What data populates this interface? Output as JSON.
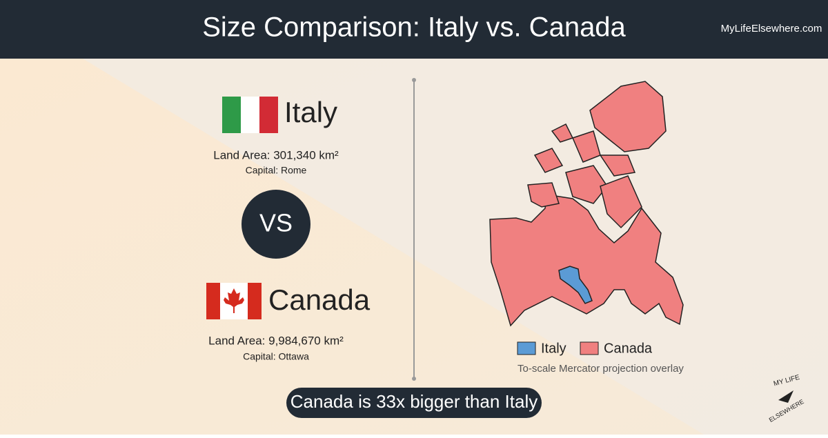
{
  "header": {
    "title": "Size Comparison: Italy vs. Canada",
    "site": "MyLifeElsewhere.com"
  },
  "countries": [
    {
      "name": "Italy",
      "land_area": "Land Area: 301,340 km²",
      "capital": "Capital: Rome"
    },
    {
      "name": "Canada",
      "land_area": "Land Area: 9,984,670 km²",
      "capital": "Capital: Ottawa"
    }
  ],
  "vs": "VS",
  "legend": [
    "Italy",
    "Canada"
  ],
  "note": "To-scale Mercator projection overlay",
  "summary": "Canada is 33x bigger than Italy",
  "logo": {
    "top": "MY LIFE",
    "bottom": "ELSEWHERE"
  }
}
